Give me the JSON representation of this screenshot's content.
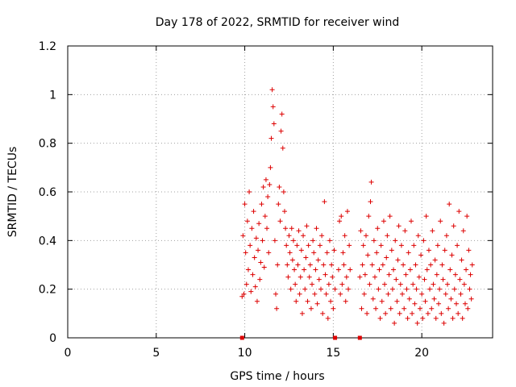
{
  "chart_data": {
    "type": "scatter",
    "title": "Day 178 of 2022, SRMTID for receiver wind",
    "xlabel": "GPS time / hours",
    "ylabel": "SRMTID / TECUs",
    "xlim": [
      0,
      24
    ],
    "ylim": [
      0,
      1.2
    ],
    "xticks": [
      0,
      5,
      10,
      15,
      20
    ],
    "yticks": [
      0,
      0.2,
      0.4,
      0.6,
      0.8,
      1,
      1.2
    ],
    "xtick_labels": [
      "0",
      "5",
      "10",
      "15",
      "20"
    ],
    "ytick_labels": [
      "0",
      "0.2",
      "0.4",
      "0.6",
      "0.8",
      "1",
      "1.2"
    ],
    "grid": true,
    "marker": "+",
    "color": "#dd0000",
    "gap_markers": [
      9.85,
      15.1,
      16.5
    ],
    "series": [
      {
        "name": "SRMTID",
        "points": [
          [
            9.85,
            0.17
          ],
          [
            9.9,
            0.42
          ],
          [
            9.95,
            0.18
          ],
          [
            10.0,
            0.55
          ],
          [
            10.05,
            0.35
          ],
          [
            10.1,
            0.22
          ],
          [
            10.15,
            0.48
          ],
          [
            10.2,
            0.28
          ],
          [
            10.25,
            0.6
          ],
          [
            10.3,
            0.38
          ],
          [
            10.35,
            0.19
          ],
          [
            10.4,
            0.45
          ],
          [
            10.45,
            0.26
          ],
          [
            10.5,
            0.52
          ],
          [
            10.55,
            0.33
          ],
          [
            10.6,
            0.21
          ],
          [
            10.65,
            0.41
          ],
          [
            10.7,
            0.15
          ],
          [
            10.75,
            0.36
          ],
          [
            10.8,
            0.47
          ],
          [
            10.85,
            0.24
          ],
          [
            10.9,
            0.31
          ],
          [
            10.95,
            0.55
          ],
          [
            11.0,
            0.4
          ],
          [
            11.05,
            0.62
          ],
          [
            11.1,
            0.29
          ],
          [
            11.15,
            0.5
          ],
          [
            11.2,
            0.65
          ],
          [
            11.25,
            0.45
          ],
          [
            11.3,
            0.58
          ],
          [
            11.35,
            0.35
          ],
          [
            11.4,
            0.63
          ],
          [
            11.45,
            0.7
          ],
          [
            11.5,
            0.82
          ],
          [
            11.55,
            1.02
          ],
          [
            11.6,
            0.95
          ],
          [
            11.65,
            0.88
          ],
          [
            11.7,
            0.4
          ],
          [
            11.75,
            0.18
          ],
          [
            11.8,
            0.12
          ],
          [
            11.85,
            0.3
          ],
          [
            11.9,
            0.55
          ],
          [
            11.95,
            0.62
          ],
          [
            12.0,
            0.48
          ],
          [
            12.05,
            0.85
          ],
          [
            12.1,
            0.92
          ],
          [
            12.15,
            0.78
          ],
          [
            12.2,
            0.6
          ],
          [
            12.25,
            0.52
          ],
          [
            12.3,
            0.45
          ],
          [
            12.35,
            0.38
          ],
          [
            12.4,
            0.3
          ],
          [
            12.45,
            0.25
          ],
          [
            12.5,
            0.42
          ],
          [
            12.55,
            0.35
          ],
          [
            12.6,
            0.2
          ],
          [
            12.65,
            0.45
          ],
          [
            12.7,
            0.32
          ],
          [
            12.75,
            0.4
          ],
          [
            12.8,
            0.28
          ],
          [
            12.85,
            0.22
          ],
          [
            12.9,
            0.15
          ],
          [
            12.95,
            0.38
          ],
          [
            13.0,
            0.3
          ],
          [
            13.05,
            0.44
          ],
          [
            13.1,
            0.18
          ],
          [
            13.15,
            0.25
          ],
          [
            13.2,
            0.36
          ],
          [
            13.25,
            0.1
          ],
          [
            13.3,
            0.42
          ],
          [
            13.35,
            0.28
          ],
          [
            13.4,
            0.2
          ],
          [
            13.45,
            0.33
          ],
          [
            13.5,
            0.46
          ],
          [
            13.55,
            0.15
          ],
          [
            13.6,
            0.38
          ],
          [
            13.65,
            0.25
          ],
          [
            13.7,
            0.3
          ],
          [
            13.75,
            0.12
          ],
          [
            13.8,
            0.22
          ],
          [
            13.85,
            0.4
          ],
          [
            13.9,
            0.35
          ],
          [
            13.95,
            0.18
          ],
          [
            14.0,
            0.28
          ],
          [
            14.05,
            0.45
          ],
          [
            14.1,
            0.14
          ],
          [
            14.15,
            0.32
          ],
          [
            14.2,
            0.24
          ],
          [
            14.25,
            0.38
          ],
          [
            14.3,
            0.2
          ],
          [
            14.35,
            0.42
          ],
          [
            14.4,
            0.1
          ],
          [
            14.45,
            0.3
          ],
          [
            14.5,
            0.56
          ],
          [
            14.55,
            0.26
          ],
          [
            14.6,
            0.18
          ],
          [
            14.65,
            0.35
          ],
          [
            14.7,
            0.08
          ],
          [
            14.75,
            0.22
          ],
          [
            14.8,
            0.4
          ],
          [
            14.85,
            0.15
          ],
          [
            14.9,
            0.3
          ],
          [
            14.95,
            0.25
          ],
          [
            15.0,
            0.12
          ],
          [
            15.05,
            0.36
          ],
          [
            15.1,
            0.2
          ],
          [
            15.3,
            0.28
          ],
          [
            15.35,
            0.48
          ],
          [
            15.4,
            0.18
          ],
          [
            15.45,
            0.5
          ],
          [
            15.5,
            0.22
          ],
          [
            15.55,
            0.35
          ],
          [
            15.6,
            0.3
          ],
          [
            15.65,
            0.42
          ],
          [
            15.7,
            0.15
          ],
          [
            15.75,
            0.25
          ],
          [
            15.8,
            0.52
          ],
          [
            15.85,
            0.2
          ],
          [
            15.9,
            0.38
          ],
          [
            15.95,
            0.28
          ],
          [
            16.5,
            0.25
          ],
          [
            16.55,
            0.44
          ],
          [
            16.6,
            0.12
          ],
          [
            16.65,
            0.3
          ],
          [
            16.7,
            0.38
          ],
          [
            16.75,
            0.18
          ],
          [
            16.8,
            0.26
          ],
          [
            16.85,
            0.42
          ],
          [
            16.9,
            0.1
          ],
          [
            16.95,
            0.34
          ],
          [
            17.0,
            0.5
          ],
          [
            17.05,
            0.22
          ],
          [
            17.1,
            0.56
          ],
          [
            17.15,
            0.64
          ],
          [
            17.2,
            0.3
          ],
          [
            17.25,
            0.16
          ],
          [
            17.3,
            0.4
          ],
          [
            17.35,
            0.25
          ],
          [
            17.4,
            0.12
          ],
          [
            17.45,
            0.35
          ],
          [
            17.5,
            0.45
          ],
          [
            17.55,
            0.2
          ],
          [
            17.6,
            0.28
          ],
          [
            17.65,
            0.08
          ],
          [
            17.7,
            0.38
          ],
          [
            17.75,
            0.15
          ],
          [
            17.8,
            0.3
          ],
          [
            17.85,
            0.48
          ],
          [
            17.9,
            0.22
          ],
          [
            17.95,
            0.1
          ],
          [
            18.0,
            0.33
          ],
          [
            18.05,
            0.42
          ],
          [
            18.1,
            0.18
          ],
          [
            18.15,
            0.26
          ],
          [
            18.2,
            0.5
          ],
          [
            18.25,
            0.12
          ],
          [
            18.3,
            0.36
          ],
          [
            18.35,
            0.2
          ],
          [
            18.4,
            0.28
          ],
          [
            18.45,
            0.06
          ],
          [
            18.5,
            0.4
          ],
          [
            18.55,
            0.24
          ],
          [
            18.6,
            0.15
          ],
          [
            18.65,
            0.32
          ],
          [
            18.7,
            0.46
          ],
          [
            18.75,
            0.1
          ],
          [
            18.8,
            0.22
          ],
          [
            18.85,
            0.38
          ],
          [
            18.9,
            0.18
          ],
          [
            18.95,
            0.3
          ],
          [
            19.0,
            0.12
          ],
          [
            19.05,
            0.44
          ],
          [
            19.1,
            0.26
          ],
          [
            19.15,
            0.2
          ],
          [
            19.2,
            0.08
          ],
          [
            19.25,
            0.35
          ],
          [
            19.3,
            0.16
          ],
          [
            19.35,
            0.28
          ],
          [
            19.4,
            0.48
          ],
          [
            19.45,
            0.1
          ],
          [
            19.5,
            0.22
          ],
          [
            19.55,
            0.38
          ],
          [
            19.6,
            0.14
          ],
          [
            19.65,
            0.3
          ],
          [
            19.7,
            0.2
          ],
          [
            19.75,
            0.06
          ],
          [
            19.8,
            0.42
          ],
          [
            19.85,
            0.25
          ],
          [
            19.9,
            0.12
          ],
          [
            19.95,
            0.34
          ],
          [
            20.0,
            0.18
          ],
          [
            20.05,
            0.08
          ],
          [
            20.1,
            0.4
          ],
          [
            20.15,
            0.24
          ],
          [
            20.2,
            0.15
          ],
          [
            20.25,
            0.5
          ],
          [
            20.3,
            0.28
          ],
          [
            20.35,
            0.1
          ],
          [
            20.4,
            0.36
          ],
          [
            20.45,
            0.2
          ],
          [
            20.5,
            0.3
          ],
          [
            20.55,
            0.12
          ],
          [
            20.6,
            0.44
          ],
          [
            20.65,
            0.22
          ],
          [
            20.7,
            0.16
          ],
          [
            20.75,
            0.32
          ],
          [
            20.8,
            0.08
          ],
          [
            20.85,
            0.26
          ],
          [
            20.9,
            0.38
          ],
          [
            20.95,
            0.14
          ],
          [
            21.0,
            0.2
          ],
          [
            21.05,
            0.48
          ],
          [
            21.1,
            0.1
          ],
          [
            21.15,
            0.3
          ],
          [
            21.2,
            0.24
          ],
          [
            21.25,
            0.06
          ],
          [
            21.3,
            0.36
          ],
          [
            21.35,
            0.18
          ],
          [
            21.4,
            0.42
          ],
          [
            21.45,
            0.22
          ],
          [
            21.5,
            0.12
          ],
          [
            21.55,
            0.55
          ],
          [
            21.6,
            0.28
          ],
          [
            21.65,
            0.16
          ],
          [
            21.7,
            0.34
          ],
          [
            21.75,
            0.08
          ],
          [
            21.8,
            0.46
          ],
          [
            21.85,
            0.2
          ],
          [
            21.9,
            0.26
          ],
          [
            21.95,
            0.14
          ],
          [
            22.0,
            0.38
          ],
          [
            22.05,
            0.1
          ],
          [
            22.1,
            0.52
          ],
          [
            22.15,
            0.24
          ],
          [
            22.2,
            0.18
          ],
          [
            22.25,
            0.32
          ],
          [
            22.3,
            0.08
          ],
          [
            22.35,
            0.44
          ],
          [
            22.4,
            0.22
          ],
          [
            22.45,
            0.14
          ],
          [
            22.5,
            0.28
          ],
          [
            22.55,
            0.5
          ],
          [
            22.6,
            0.12
          ],
          [
            22.65,
            0.36
          ],
          [
            22.7,
            0.2
          ],
          [
            22.75,
            0.26
          ],
          [
            22.8,
            0.16
          ],
          [
            22.85,
            0.3
          ]
        ]
      }
    ]
  }
}
